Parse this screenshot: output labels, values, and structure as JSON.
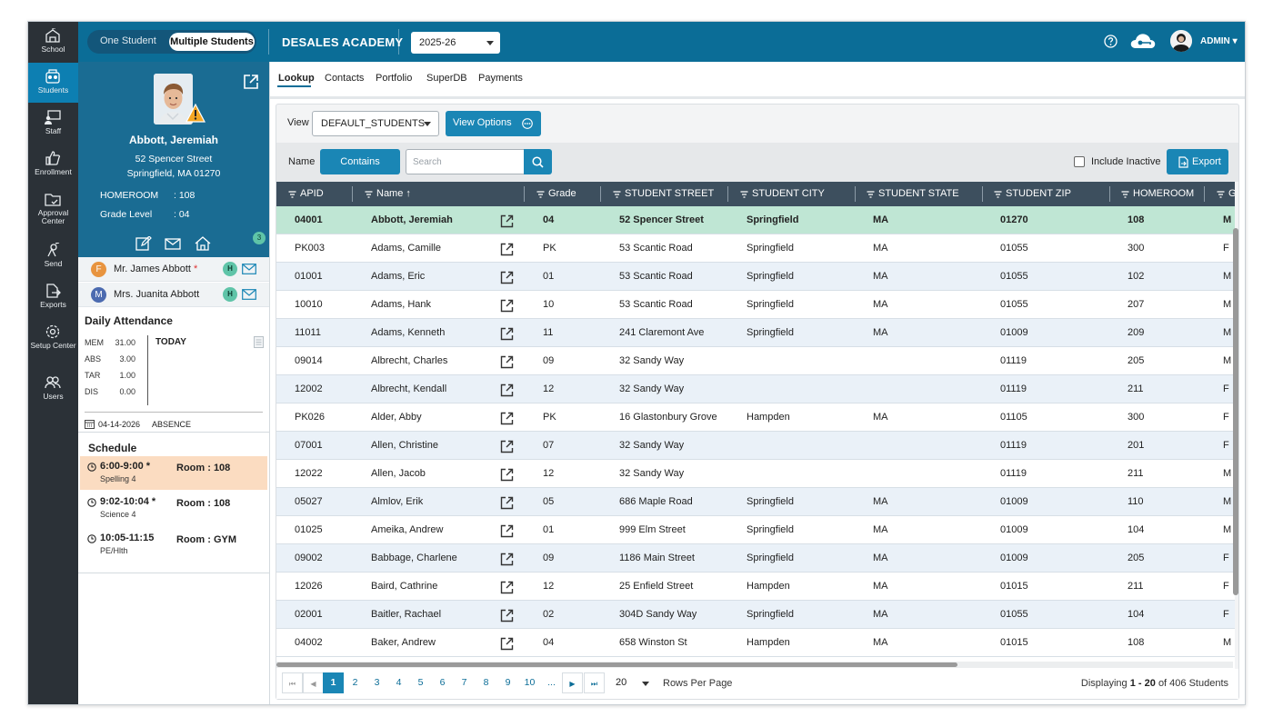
{
  "rail": [
    {
      "label": "School",
      "icon": "school-icon"
    },
    {
      "label": "Students",
      "icon": "students-icon",
      "active": true
    },
    {
      "label": "Staff",
      "icon": "staff-icon"
    },
    {
      "label": "Enrollment",
      "icon": "enrollment-icon"
    },
    {
      "label": "Approval Center",
      "icon": "approval-center-icon"
    },
    {
      "label": "Send",
      "icon": "send-icon"
    },
    {
      "label": "Exports",
      "icon": "exports-icon"
    },
    {
      "label": "Setup Center",
      "icon": "setup-center-icon"
    },
    {
      "label": "Users",
      "icon": "users-icon"
    }
  ],
  "topbar": {
    "toggle_one": "One Student",
    "toggle_multiple": "Multiple Students",
    "school_name": "DESALES ACADEMY",
    "year": "2025-26",
    "user": "ADMIN"
  },
  "profile": {
    "name": "Abbott, Jeremiah",
    "street": "52 Spencer Street",
    "city_line": "Springfield, MA 01270",
    "homeroom_label": "HOMEROOM",
    "homeroom_value": ": 108",
    "grade_label": "Grade Level",
    "grade_value": ": 04",
    "household_count": "3"
  },
  "contacts": [
    {
      "initial": "F",
      "name": "Mr. James Abbott",
      "required": "*",
      "badge": "H",
      "color": "#e8943f"
    },
    {
      "initial": "M",
      "name": "Mrs. Juanita Abbott",
      "required": "",
      "badge": "H",
      "color": "#4c6bb0"
    }
  ],
  "attendance": {
    "title": "Daily Attendance",
    "rows": [
      {
        "label": "MEM",
        "value": "31.00"
      },
      {
        "label": "ABS",
        "value": "3.00"
      },
      {
        "label": "TAR",
        "value": "1.00"
      },
      {
        "label": "DIS",
        "value": "0.00"
      }
    ],
    "today": "TODAY",
    "absence_date": "04-14-2026",
    "absence_label": "ABSENCE"
  },
  "schedule": {
    "title": "Schedule",
    "items": [
      {
        "time": "6:00-9:00 *",
        "subject": "Spelling 4",
        "room": "Room : 108",
        "highlight": true
      },
      {
        "time": "9:02-10:04 *",
        "subject": "Science 4",
        "room": "Room : 108",
        "highlight": false
      },
      {
        "time": "10:05-11:15",
        "subject": "PE/Hlth",
        "room": "Room : GYM",
        "highlight": false
      }
    ]
  },
  "tabs": [
    "Lookup",
    "Contacts",
    "Portfolio",
    "SuperDB",
    "Payments"
  ],
  "toolbar": {
    "view_label": "View",
    "view_value": "DEFAULT_STUDENTS",
    "view_options": "View Options",
    "name_label": "Name",
    "contains": "Contains",
    "search_placeholder": "Search",
    "include_inactive": "Include Inactive",
    "export": "Export"
  },
  "grid": {
    "columns": [
      "APID",
      "Name ↑",
      "Grade",
      "STUDENT STREET",
      "STUDENT CITY",
      "STUDENT STATE",
      "STUDENT ZIP",
      "HOMEROOM",
      "GEN"
    ],
    "rows": [
      [
        "04001",
        "Abbott, Jeremiah",
        "04",
        "52 Spencer Street",
        "Springfield",
        "MA",
        "01270",
        "108",
        "M"
      ],
      [
        "PK003",
        "Adams, Camille",
        "PK",
        "53 Scantic Road",
        "Springfield",
        "MA",
        "01055",
        "300",
        "F"
      ],
      [
        "01001",
        "Adams, Eric",
        "01",
        "53 Scantic Road",
        "Springfield",
        "MA",
        "01055",
        "102",
        "M"
      ],
      [
        "10010",
        "Adams, Hank",
        "10",
        "53 Scantic Road",
        "Springfield",
        "MA",
        "01055",
        "207",
        "M"
      ],
      [
        "11011",
        "Adams, Kenneth",
        "11",
        "241 Claremont Ave",
        "Springfield",
        "MA",
        "01009",
        "209",
        "M"
      ],
      [
        "09014",
        "Albrecht, Charles",
        "09",
        "32 Sandy Way",
        "",
        "",
        "01119",
        "205",
        "M"
      ],
      [
        "12002",
        "Albrecht, Kendall",
        "12",
        "32 Sandy Way",
        "",
        "",
        "01119",
        "211",
        "F"
      ],
      [
        "PK026",
        "Alder, Abby",
        "PK",
        "16 Glastonbury Grove",
        "Hampden",
        "MA",
        "01105",
        "300",
        "F"
      ],
      [
        "07001",
        "Allen, Christine",
        "07",
        "32 Sandy Way",
        "",
        "",
        "01119",
        "201",
        "F"
      ],
      [
        "12022",
        "Allen, Jacob",
        "12",
        "32 Sandy Way",
        "",
        "",
        "01119",
        "211",
        "M"
      ],
      [
        "05027",
        "Almlov, Erik",
        "05",
        "686 Maple Road",
        "Springfield",
        "MA",
        "01009",
        "110",
        "M"
      ],
      [
        "01025",
        "Ameika, Andrew",
        "01",
        "999 Elm Street",
        "Springfield",
        "MA",
        "01009",
        "104",
        "M"
      ],
      [
        "09002",
        "Babbage, Charlene",
        "09",
        "1186 Main Street",
        "Springfield",
        "MA",
        "01009",
        "205",
        "F"
      ],
      [
        "12026",
        "Baird, Cathrine",
        "12",
        "25 Enfield Street",
        "Hampden",
        "MA",
        "01015",
        "211",
        "F"
      ],
      [
        "02001",
        "Baitler, Rachael",
        "02",
        "304D Sandy Way",
        "Springfield",
        "MA",
        "01055",
        "104",
        "F"
      ],
      [
        "04002",
        "Baker, Andrew",
        "04",
        "658 Winston St",
        "Hampden",
        "MA",
        "01015",
        "108",
        "M"
      ]
    ]
  },
  "pager": {
    "first": "⏮",
    "prev": "◀",
    "pages": [
      "1",
      "2",
      "3",
      "4",
      "5",
      "6",
      "7",
      "8",
      "9",
      "10",
      "..."
    ],
    "current": "1",
    "next": "▶",
    "last": "⏭",
    "rows_per_page_value": "20",
    "rows_per_page_label": "Rows Per Page",
    "display_prefix": "Displaying",
    "display_range": "1 - 20",
    "display_suffix": "of 406 Students"
  },
  "colors": {
    "rail": "#2b3137",
    "topbar": "#0b6d97",
    "accent": "#1a86b5",
    "selected_row": "#bfe6d4",
    "schedule_highlight": "#fbdcc1"
  }
}
